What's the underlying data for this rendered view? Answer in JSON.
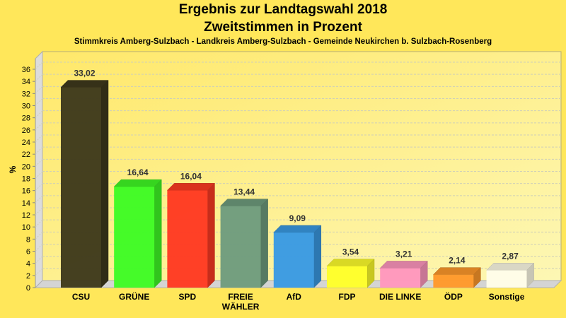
{
  "header": {
    "title": "Ergebnis zur Landtagswahl 2018",
    "subtitle": "Zweitstimmen in Prozent",
    "region": "Stimmkreis Amberg-Sulzbach - Landkreis Amberg-Sulzbach - Gemeinde Neukirchen b. Sulzbach-Rosenberg"
  },
  "chart_data": {
    "type": "bar",
    "title": "Ergebnis zur Landtagswahl 2018",
    "subtitle": "Zweitstimmen in Prozent",
    "xlabel": "",
    "ylabel": "%",
    "ylim": [
      0,
      36
    ],
    "yticks": [
      0,
      2,
      4,
      6,
      8,
      10,
      12,
      14,
      16,
      18,
      20,
      22,
      24,
      26,
      28,
      30,
      32,
      34,
      36
    ],
    "grid": true,
    "categories": [
      "CSU",
      "GRÜNE",
      "SPD",
      "FREIE WÄHLER",
      "AfD",
      "FDP",
      "DIE LINKE",
      "ÖDP",
      "Sonstige"
    ],
    "category_lines": [
      [
        "CSU"
      ],
      [
        "GRÜNE"
      ],
      [
        "SPD"
      ],
      [
        "FREIE",
        "WÄHLER"
      ],
      [
        "AfD"
      ],
      [
        "FDP"
      ],
      [
        "DIE LINKE"
      ],
      [
        "ÖDP"
      ],
      [
        "Sonstige"
      ]
    ],
    "values": [
      33.02,
      16.64,
      16.04,
      13.44,
      9.09,
      3.54,
      3.21,
      2.14,
      2.87
    ],
    "value_labels": [
      "33,02",
      "16,64",
      "16,04",
      "13,44",
      "9,09",
      "3,54",
      "3,21",
      "2,14",
      "2,87"
    ],
    "colors": [
      "#3f3a1c",
      "#3ffb25",
      "#ff3a22",
      "#6f9c7e",
      "#3a9ae3",
      "#ffff2a",
      "#ff97be",
      "#ff992a",
      "#fffde8"
    ]
  }
}
